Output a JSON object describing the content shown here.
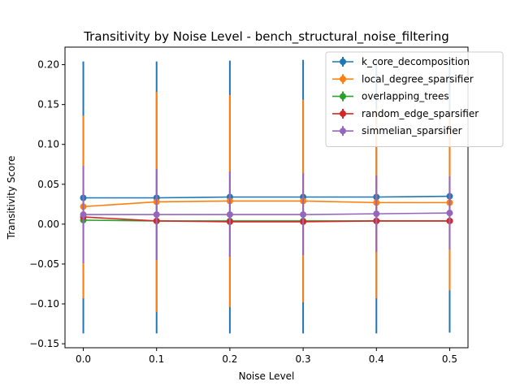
{
  "chart_data": {
    "type": "line",
    "title": "Transitivity by Noise Level - bench_structural_noise_filtering",
    "xlabel": "Noise Level",
    "ylabel": "Transitivity Score",
    "xlim": [
      -0.025,
      0.525
    ],
    "ylim": [
      -0.155,
      0.222
    ],
    "xticks": [
      0.0,
      0.1,
      0.2,
      0.3,
      0.4,
      0.5
    ],
    "xtick_labels": [
      "0.0",
      "0.1",
      "0.2",
      "0.3",
      "0.4",
      "0.5"
    ],
    "yticks": [
      -0.15,
      -0.1,
      -0.05,
      0.0,
      0.05,
      0.1,
      0.15,
      0.2
    ],
    "ytick_labels": [
      "−0.15",
      "−0.10",
      "−0.05",
      "0.00",
      "0.05",
      "0.10",
      "0.15",
      "0.20"
    ],
    "grid": false,
    "legend_position": "top-right",
    "x": [
      0.0,
      0.1,
      0.2,
      0.3,
      0.4,
      0.5
    ],
    "series": [
      {
        "name": "k_core_decomposition",
        "color": "#1f77b4",
        "values": [
          0.033,
          0.033,
          0.034,
          0.034,
          0.034,
          0.035
        ],
        "err_low": [
          -0.137,
          -0.137,
          -0.137,
          -0.137,
          -0.137,
          -0.136
        ],
        "err_high": [
          0.204,
          0.204,
          0.205,
          0.206,
          0.205,
          0.206
        ]
      },
      {
        "name": "local_degree_sparsifier",
        "color": "#ff7f0e",
        "values": [
          0.022,
          0.028,
          0.029,
          0.029,
          0.027,
          0.027
        ],
        "err_low": [
          -0.093,
          -0.11,
          -0.104,
          -0.098,
          -0.093,
          -0.083
        ],
        "err_high": [
          0.136,
          0.166,
          0.162,
          0.156,
          0.145,
          0.137
        ]
      },
      {
        "name": "overlapping_trees",
        "color": "#2ca02c",
        "values": [
          0.005,
          0.004,
          0.004,
          0.004,
          0.004,
          0.004
        ],
        "err_low": [
          0.003,
          0.003,
          0.003,
          0.003,
          0.003,
          0.003
        ],
        "err_high": [
          0.007,
          0.005,
          0.005,
          0.005,
          0.005,
          0.005
        ]
      },
      {
        "name": "random_edge_sparsifier",
        "color": "#d62728",
        "values": [
          0.009,
          0.004,
          0.003,
          0.003,
          0.004,
          0.004
        ],
        "err_low": [
          0.006,
          0.003,
          0.002,
          0.002,
          0.003,
          0.003
        ],
        "err_high": [
          0.012,
          0.005,
          0.004,
          0.004,
          0.005,
          0.005
        ]
      },
      {
        "name": "simmelian_sparsifier",
        "color": "#9467bd",
        "values": [
          0.012,
          0.012,
          0.012,
          0.012,
          0.013,
          0.014
        ],
        "err_low": [
          -0.049,
          -0.045,
          -0.041,
          -0.039,
          -0.035,
          -0.032
        ],
        "err_high": [
          0.073,
          0.069,
          0.066,
          0.064,
          0.061,
          0.06
        ]
      }
    ]
  }
}
